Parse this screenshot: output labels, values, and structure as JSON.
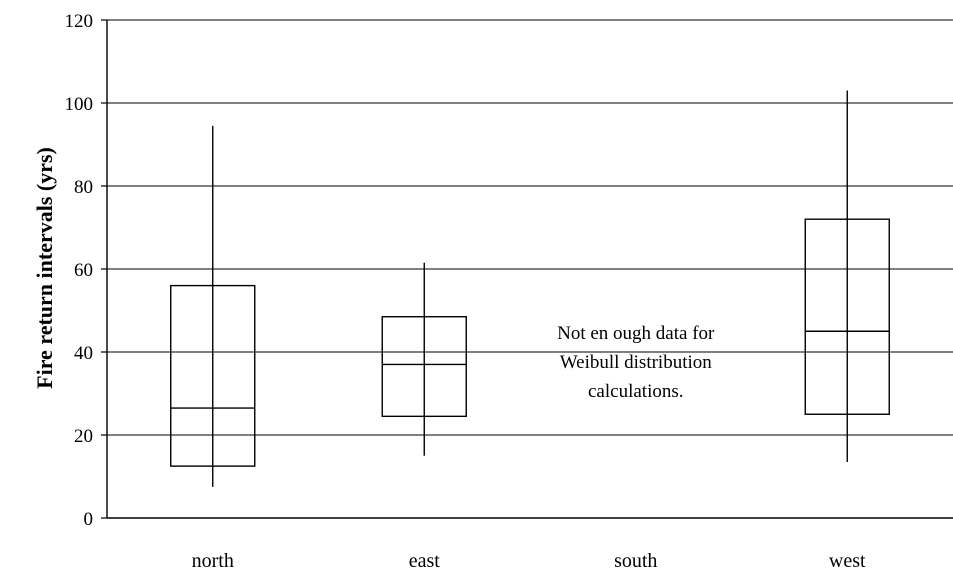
{
  "chart_data": {
    "type": "boxplot",
    "title": "",
    "xlabel": "",
    "ylabel": "Fire return intervals (yrs)",
    "ylim": [
      0,
      120
    ],
    "yticks": [
      0,
      20,
      40,
      60,
      80,
      100,
      120
    ],
    "grid": "horizontal",
    "categories": [
      "north",
      "east",
      "south",
      "west"
    ],
    "boxes": [
      {
        "category": "north",
        "whisker_low": 7.5,
        "q1": 12.5,
        "median": 26.5,
        "q3": 56,
        "whisker_high": 94.5
      },
      {
        "category": "east",
        "whisker_low": 15,
        "q1": 24.5,
        "median": 37,
        "q3": 48.5,
        "whisker_high": 61.5
      },
      {
        "category": "south",
        "whisker_low": null,
        "q1": null,
        "median": null,
        "q3": null,
        "whisker_high": null
      },
      {
        "category": "west",
        "whisker_low": 13.5,
        "q1": 25,
        "median": 45,
        "q3": 72,
        "whisker_high": 103
      }
    ],
    "annotation": {
      "category": "south",
      "lines": [
        "Not en ough data for",
        "Weibull distribution",
        "calculations."
      ]
    }
  }
}
